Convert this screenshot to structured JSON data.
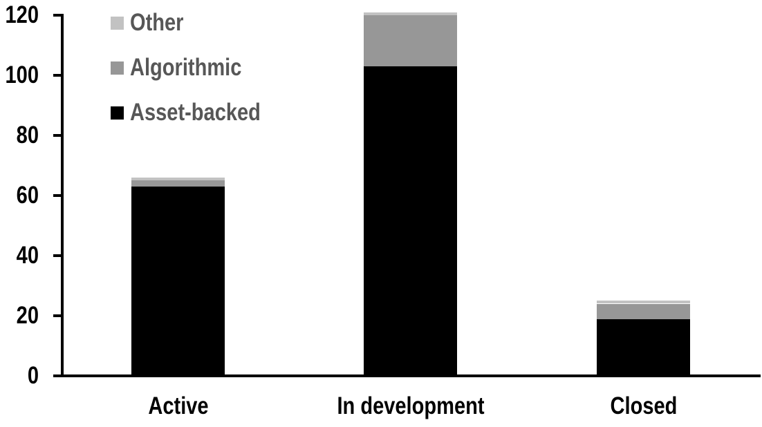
{
  "chart_data": {
    "type": "bar",
    "stacked": true,
    "title": "",
    "xlabel": "",
    "ylabel": "",
    "grid": false,
    "background_color": "#ffffff",
    "axis_color": "#000000",
    "legend_text_color": "#575757",
    "categories": [
      "Active",
      "In development",
      "Closed"
    ],
    "series": [
      {
        "name": "Asset-backed",
        "color": "#000000",
        "values": [
          63,
          103,
          19
        ]
      },
      {
        "name": "Algorithmic",
        "color": "#979797",
        "values": [
          2,
          17,
          5
        ]
      },
      {
        "name": "Other",
        "color": "#c2c2c2",
        "values": [
          1,
          1,
          1
        ]
      }
    ],
    "stack_totals": [
      66,
      121,
      25
    ],
    "y_axis": {
      "min": 0,
      "max": 120,
      "ticks": [
        0,
        20,
        40,
        60,
        80,
        100,
        120
      ],
      "tick_labels": [
        "0",
        "20",
        "40",
        "60",
        "80",
        "100",
        "120"
      ]
    },
    "legend": {
      "position": "top-left",
      "display_order": [
        "Other",
        "Algorithmic",
        "Asset-backed"
      ]
    }
  }
}
